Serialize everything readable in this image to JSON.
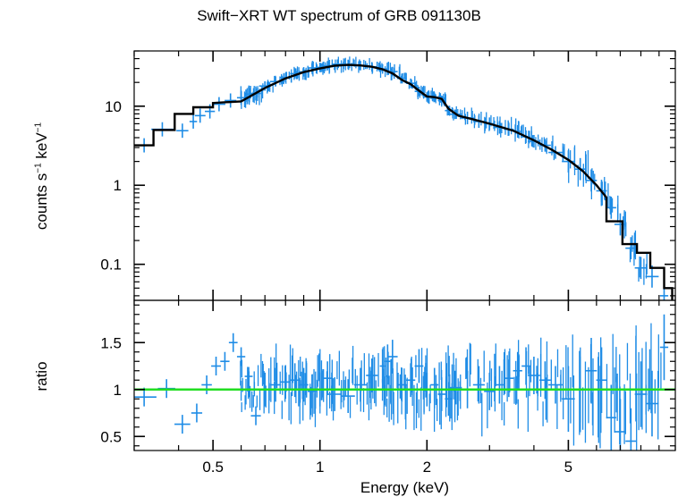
{
  "chart_data": [
    {
      "type": "scatter",
      "panel": "spectrum",
      "title": "Swift−XRT WT spectrum of GRB 091130B",
      "ylabel_parts": [
        "counts s",
        "−1",
        " keV",
        "−1"
      ],
      "xlabel": "Energy (keV)",
      "x_scale": "log",
      "y_scale": "log",
      "xlim": [
        0.3,
        10
      ],
      "ylim": [
        0.035,
        50
      ],
      "y_ticks": [
        0.1,
        1,
        10
      ],
      "y_tick_labels": [
        "0.1",
        "1",
        "10"
      ],
      "data_color": "#1e8ce6",
      "model_color": "#000000",
      "series": [
        {
          "kind": "data",
          "points": [
            [
              0.32,
              3.2
            ],
            [
              0.36,
              5.1
            ],
            [
              0.41,
              4.9
            ],
            [
              0.44,
              6.4
            ],
            [
              0.46,
              7.6
            ],
            [
              0.49,
              8.6
            ],
            [
              0.52,
              10.6
            ],
            [
              0.56,
              11.8
            ],
            [
              0.6,
              12.8
            ],
            [
              0.63,
              14.2
            ],
            [
              0.66,
              14.5
            ],
            [
              0.7,
              18.0
            ],
            [
              0.75,
              20.5
            ],
            [
              0.8,
              23.0
            ],
            [
              0.85,
              25.8
            ],
            [
              0.9,
              27.2
            ],
            [
              0.95,
              30.5
            ],
            [
              1.0,
              31.0
            ],
            [
              1.05,
              32.5
            ],
            [
              1.12,
              34.0
            ],
            [
              1.2,
              33.8
            ],
            [
              1.3,
              32.6
            ],
            [
              1.4,
              31.5
            ],
            [
              1.5,
              29.6
            ],
            [
              1.6,
              27.4
            ],
            [
              1.7,
              22.5
            ],
            [
              1.8,
              19.5
            ],
            [
              1.9,
              15.4
            ],
            [
              2.0,
              13.1
            ],
            [
              2.1,
              13.0
            ],
            [
              2.2,
              11.8
            ],
            [
              2.3,
              8.8
            ],
            [
              2.4,
              7.9
            ],
            [
              2.6,
              7.1
            ],
            [
              2.8,
              6.4
            ],
            [
              3.0,
              6.0
            ],
            [
              3.2,
              5.4
            ],
            [
              3.4,
              5.1
            ],
            [
              3.6,
              4.8
            ],
            [
              3.8,
              4.1
            ],
            [
              4.0,
              3.6
            ],
            [
              4.3,
              3.2
            ],
            [
              4.6,
              2.6
            ],
            [
              5.0,
              2.0
            ],
            [
              5.4,
              1.6
            ],
            [
              5.8,
              1.15
            ],
            [
              6.2,
              0.85
            ],
            [
              6.6,
              0.52
            ],
            [
              7.0,
              0.32
            ],
            [
              7.5,
              0.16
            ],
            [
              8.0,
              0.09
            ],
            [
              8.6,
              0.07
            ],
            [
              9.3,
              0.04
            ]
          ]
        },
        {
          "kind": "model",
          "points": [
            [
              0.3,
              3.2
            ],
            [
              0.34,
              3.2
            ],
            [
              0.34,
              5.0
            ],
            [
              0.39,
              5.0
            ],
            [
              0.39,
              8.0
            ],
            [
              0.44,
              8.0
            ],
            [
              0.44,
              9.7
            ],
            [
              0.5,
              9.7
            ],
            [
              0.5,
              11.0
            ],
            [
              0.6,
              11.5
            ],
            [
              0.7,
              17.0
            ],
            [
              0.8,
              22.5
            ],
            [
              0.9,
              27.0
            ],
            [
              1.0,
              30.0
            ],
            [
              1.1,
              32.5
            ],
            [
              1.2,
              33.3
            ],
            [
              1.3,
              32.8
            ],
            [
              1.4,
              31.5
            ],
            [
              1.5,
              29.3
            ],
            [
              1.6,
              26.0
            ],
            [
              1.7,
              21.5
            ],
            [
              1.8,
              19.0
            ],
            [
              1.9,
              15.7
            ],
            [
              2.0,
              13.3
            ],
            [
              2.1,
              13.0
            ],
            [
              2.2,
              12.4
            ],
            [
              2.3,
              9.3
            ],
            [
              2.45,
              7.6
            ],
            [
              2.7,
              6.8
            ],
            [
              3.0,
              6.0
            ],
            [
              3.5,
              4.9
            ],
            [
              4.0,
              3.7
            ],
            [
              4.5,
              2.8
            ],
            [
              5.0,
              2.1
            ],
            [
              5.5,
              1.5
            ],
            [
              6.0,
              1.0
            ],
            [
              6.4,
              0.7
            ],
            [
              6.4,
              0.35
            ],
            [
              7.1,
              0.35
            ],
            [
              7.1,
              0.18
            ],
            [
              7.8,
              0.18
            ],
            [
              7.8,
              0.14
            ],
            [
              8.5,
              0.14
            ],
            [
              8.5,
              0.09
            ],
            [
              9.3,
              0.09
            ],
            [
              9.3,
              0.05
            ],
            [
              9.8,
              0.05
            ],
            [
              9.8,
              0.03
            ]
          ]
        }
      ]
    },
    {
      "type": "scatter",
      "panel": "ratio",
      "ylabel": "ratio",
      "xlabel": "Energy (keV)",
      "x_scale": "log",
      "xlim": [
        0.3,
        10
      ],
      "ylim": [
        0.35,
        1.95
      ],
      "x_ticks": [
        0.5,
        1,
        2,
        5
      ],
      "x_tick_labels": [
        "0.5",
        "1",
        "2",
        "5"
      ],
      "y_ticks": [
        0.5,
        1,
        1.5
      ],
      "y_tick_labels": [
        "0.5",
        "1",
        "1.5"
      ],
      "reference_line": 1,
      "reference_color": "#22dd22",
      "data_color": "#1e8ce6",
      "points": [
        [
          0.32,
          0.92
        ],
        [
          0.37,
          1.01
        ],
        [
          0.41,
          0.63
        ],
        [
          0.45,
          0.75
        ],
        [
          0.48,
          1.05
        ],
        [
          0.51,
          1.25
        ],
        [
          0.54,
          1.3
        ],
        [
          0.57,
          1.5
        ],
        [
          0.6,
          1.35
        ],
        [
          0.63,
          1.14
        ],
        [
          0.66,
          0.72
        ],
        [
          0.7,
          1.0
        ],
        [
          0.75,
          1.05
        ],
        [
          0.8,
          1.08
        ],
        [
          0.85,
          1.1
        ],
        [
          0.9,
          1.05
        ],
        [
          0.95,
          0.98
        ],
        [
          1.0,
          1.0
        ],
        [
          1.05,
          1.12
        ],
        [
          1.1,
          0.95
        ],
        [
          1.2,
          0.93
        ],
        [
          1.3,
          1.05
        ],
        [
          1.4,
          1.15
        ],
        [
          1.5,
          1.25
        ],
        [
          1.55,
          1.3
        ],
        [
          1.6,
          1.35
        ],
        [
          1.7,
          1.05
        ],
        [
          1.8,
          1.1
        ],
        [
          1.9,
          1.25
        ],
        [
          2.0,
          1.0
        ],
        [
          2.1,
          1.05
        ],
        [
          2.2,
          0.95
        ],
        [
          2.3,
          0.9
        ],
        [
          2.4,
          1.02
        ],
        [
          2.6,
          1.0
        ],
        [
          2.8,
          1.05
        ],
        [
          3.0,
          0.98
        ],
        [
          3.2,
          1.05
        ],
        [
          3.4,
          1.12
        ],
        [
          3.6,
          1.2
        ],
        [
          3.8,
          1.25
        ],
        [
          4.0,
          1.15
        ],
        [
          4.3,
          1.1
        ],
        [
          4.6,
          1.05
        ],
        [
          5.0,
          0.9
        ],
        [
          5.4,
          1.0
        ],
        [
          5.8,
          1.2
        ],
        [
          6.2,
          1.1
        ],
        [
          6.6,
          0.7
        ],
        [
          7.0,
          0.55
        ],
        [
          7.5,
          0.45
        ],
        [
          8.0,
          0.95
        ],
        [
          8.6,
          0.85
        ],
        [
          9.3,
          1.45
        ]
      ]
    }
  ]
}
